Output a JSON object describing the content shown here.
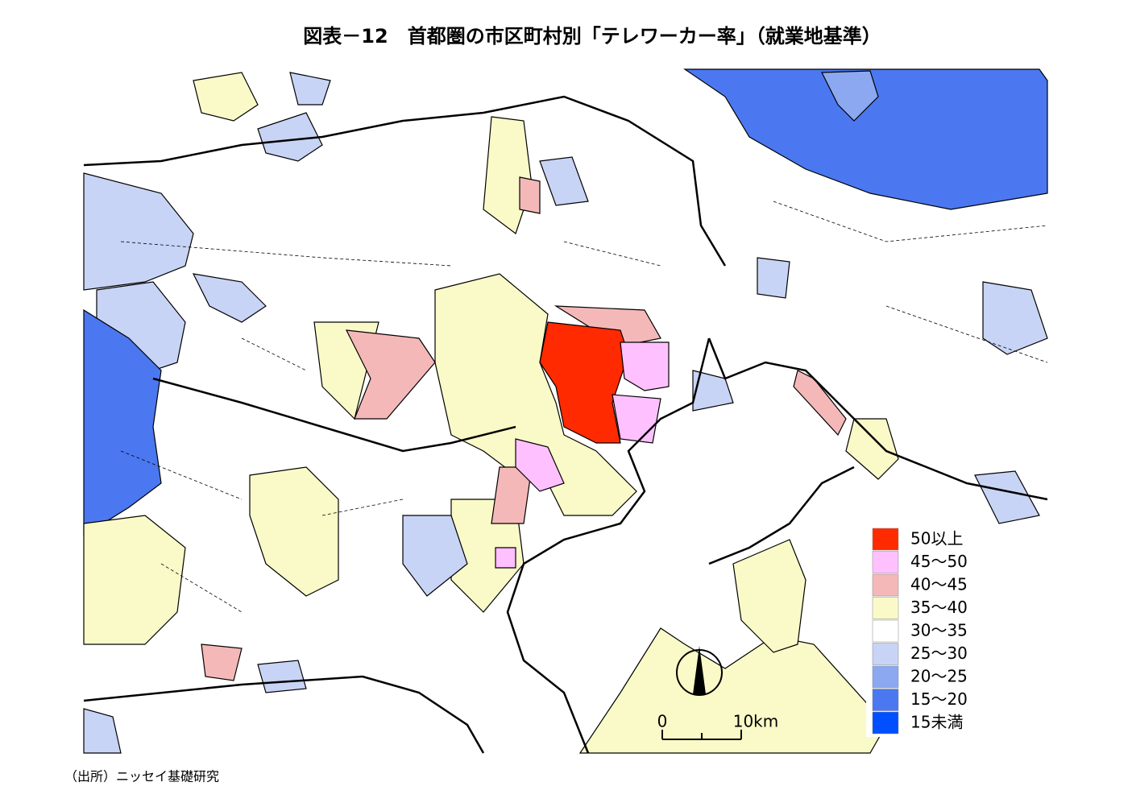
{
  "title": "図表－12　首都圏の市区町村別「テレワーカー率」（就業地基準）",
  "legend": {
    "items": [
      {
        "label": "50以上",
        "color": "#ff2a00"
      },
      {
        "label": "45～50",
        "color": "#ffc0ff"
      },
      {
        "label": "40～45",
        "color": "#f5b8b8"
      },
      {
        "label": "35～40",
        "color": "#fafac8"
      },
      {
        "label": "30～35",
        "color": "#ffffff"
      },
      {
        "label": "25～30",
        "color": "#c8d4f5"
      },
      {
        "label": "20～25",
        "color": "#8ca8f0"
      },
      {
        "label": "15～20",
        "color": "#4b78f0"
      },
      {
        "label": "15未満",
        "color": "#0050ff"
      }
    ]
  },
  "scale": {
    "start": "0",
    "end": "10km"
  },
  "source": "（出所）ニッセイ基礎研究"
}
